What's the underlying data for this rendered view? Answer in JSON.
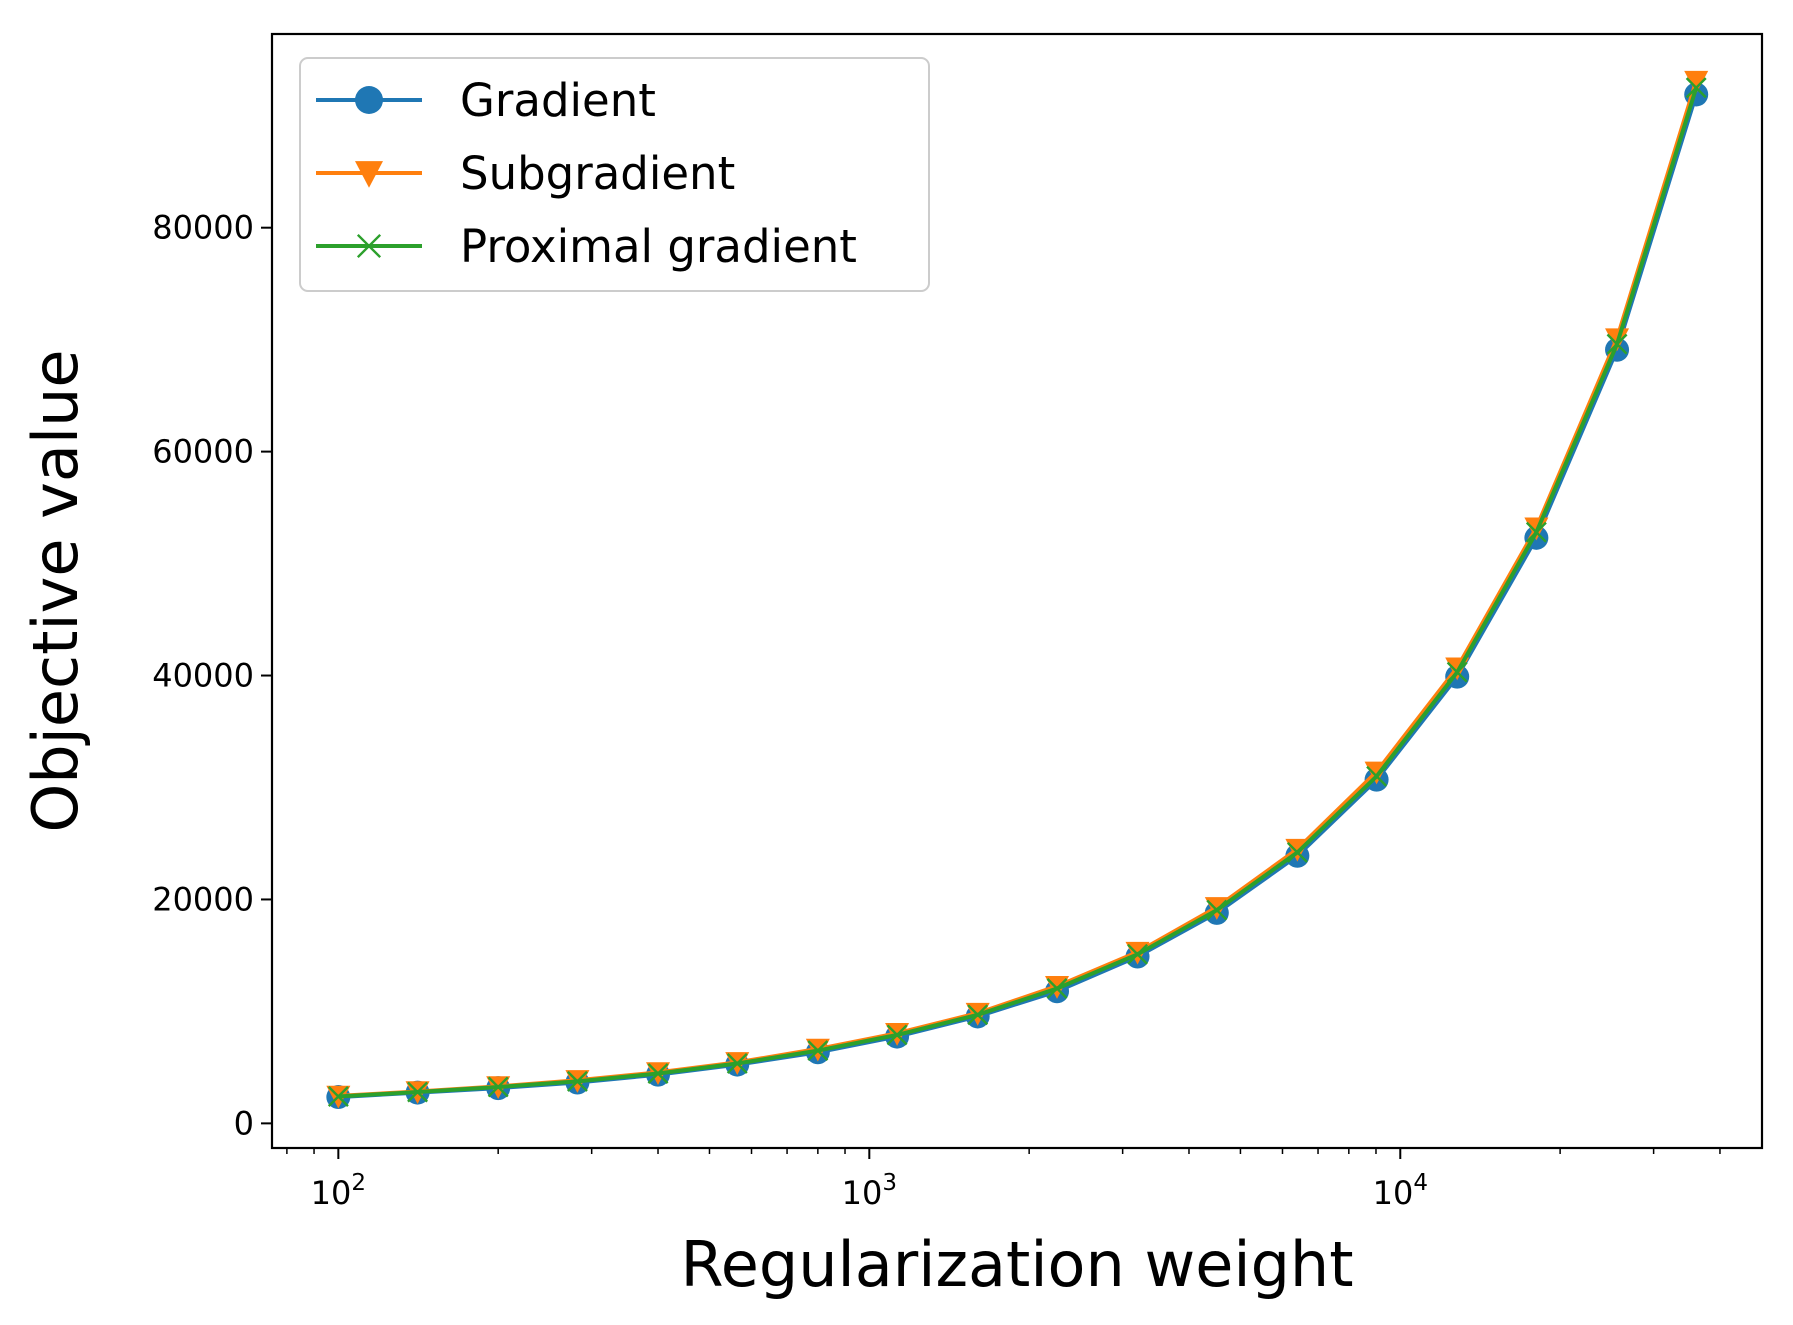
{
  "chart_data": {
    "type": "line",
    "title": "",
    "xlabel": "Regularization weight",
    "ylabel": "Objective value",
    "xscale": "log",
    "xlim": [
      75,
      48000
    ],
    "ylim": [
      -2200,
      97300
    ],
    "grid": false,
    "legend_position": "top-left",
    "x_ticks": [
      {
        "value": 100,
        "base": "10",
        "exp": "2"
      },
      {
        "value": 1000,
        "base": "10",
        "exp": "3"
      },
      {
        "value": 10000,
        "base": "10",
        "exp": "4"
      }
    ],
    "y_ticks": [
      {
        "value": 0,
        "label": "0"
      },
      {
        "value": 20000,
        "label": "20000"
      },
      {
        "value": 40000,
        "label": "40000"
      },
      {
        "value": 60000,
        "label": "60000"
      },
      {
        "value": 80000,
        "label": "80000"
      }
    ],
    "x": [
      100,
      141,
      200,
      282,
      400,
      564,
      800,
      1128,
      1600,
      2257,
      3200,
      4513,
      6400,
      9024,
      12800,
      18043,
      25600,
      36085
    ],
    "series": [
      {
        "name": "Gradient",
        "color": "#1f77b4",
        "marker": "circle",
        "values": [
          2350,
          2750,
          3150,
          3650,
          4350,
          5250,
          6350,
          7750,
          9550,
          11800,
          14900,
          18800,
          23900,
          30700,
          39900,
          52300,
          69100,
          91900
        ]
      },
      {
        "name": "Subgradient",
        "color": "#ff7f0e",
        "marker": "triangle-down",
        "values": [
          2450,
          2850,
          3300,
          3850,
          4550,
          5450,
          6650,
          8050,
          9850,
          12250,
          15300,
          19300,
          24500,
          31400,
          40700,
          53200,
          70100,
          93100
        ]
      },
      {
        "name": "Proximal gradient",
        "color": "#2ca02c",
        "marker": "x",
        "values": [
          2400,
          2800,
          3250,
          3750,
          4450,
          5350,
          6500,
          7900,
          9700,
          12050,
          15100,
          19050,
          24200,
          31000,
          40300,
          52800,
          69600,
          92500
        ]
      }
    ]
  }
}
